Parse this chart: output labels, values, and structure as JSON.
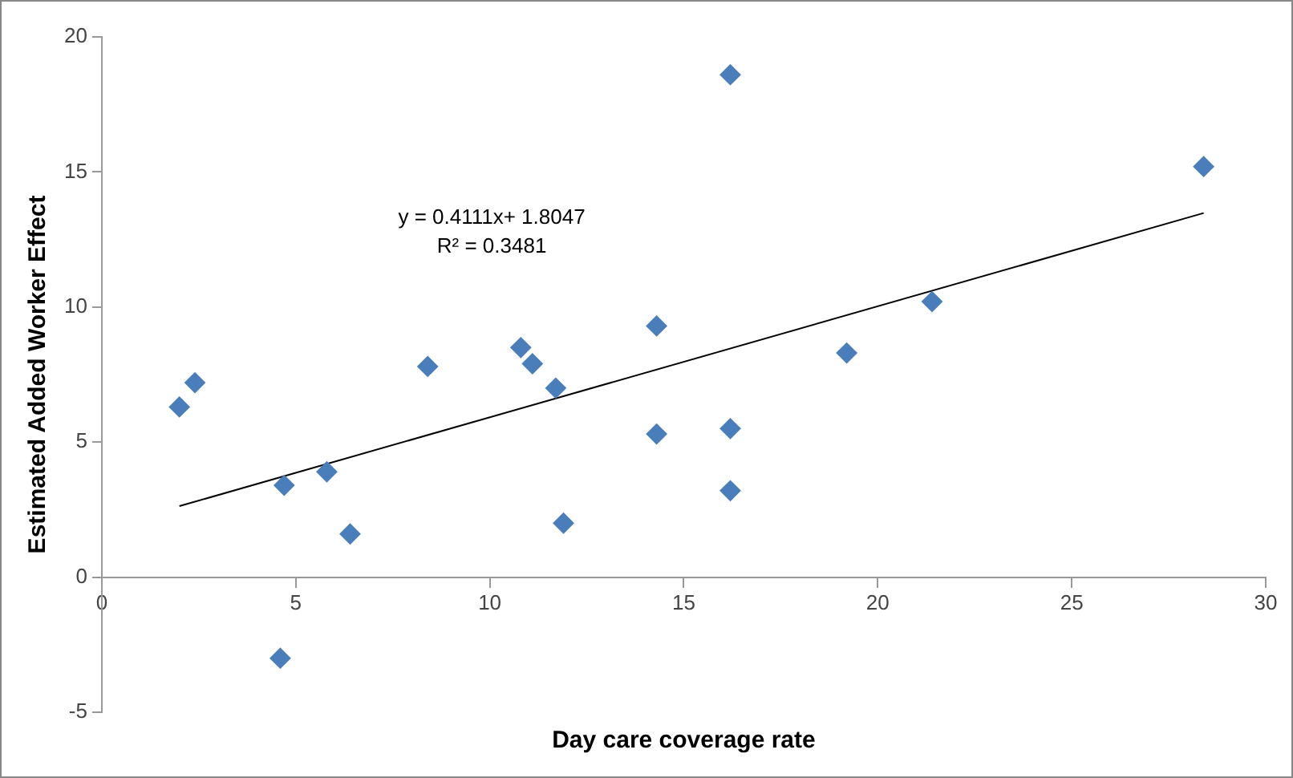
{
  "chart_data": {
    "type": "scatter",
    "xlabel": "Day care coverage rate",
    "ylabel": "Estimated Added Worker Effect",
    "xlim": [
      0,
      30
    ],
    "xticks": [
      0,
      5,
      10,
      15,
      20,
      25,
      30
    ],
    "ylim": [
      -5,
      20
    ],
    "yticks": [
      -5,
      0,
      5,
      10,
      15,
      20
    ],
    "grid": false,
    "legend": false,
    "marker": "diamond",
    "annotations": [
      "y = 0.4111x+ 1.8047",
      "R² = 0.3481"
    ],
    "series": [
      {
        "color": "#4a7ebb",
        "x": [
          2.0,
          2.4,
          4.7,
          4.6,
          5.8,
          6.4,
          8.4,
          10.8,
          11.1,
          11.7,
          11.9,
          14.3,
          14.3,
          16.2,
          16.2,
          16.2,
          19.2,
          21.4,
          28.4
        ],
        "values": [
          6.3,
          7.2,
          3.4,
          -3.0,
          3.9,
          1.6,
          7.8,
          8.5,
          7.9,
          7.0,
          2.0,
          9.3,
          5.3,
          18.6,
          5.5,
          3.2,
          8.3,
          10.2,
          15.2
        ]
      },
      {
        "type": "line",
        "color": "#000000",
        "marker": "none",
        "x": [
          2.0,
          28.4
        ],
        "values": [
          2.63,
          13.48
        ]
      }
    ]
  }
}
